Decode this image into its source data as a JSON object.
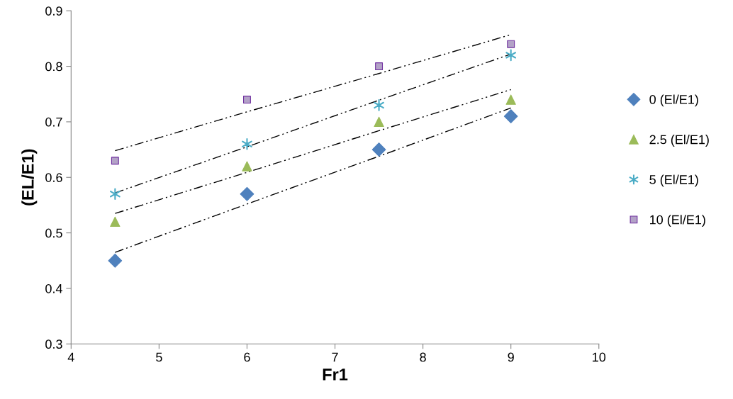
{
  "chart_data": {
    "type": "scatter",
    "xlabel": "Fr1",
    "ylabel": "(EL/E1)",
    "xlim": [
      4,
      10
    ],
    "xticks": [
      4,
      5,
      6,
      7,
      8,
      9,
      10
    ],
    "ylim": [
      0.3,
      0.9
    ],
    "yticks": [
      0.3,
      0.4,
      0.5,
      0.6,
      0.7,
      0.8,
      0.9
    ],
    "grid": false,
    "legend": "right",
    "x": [
      4.5,
      6,
      7.5,
      9
    ],
    "series": [
      {
        "name": "0 (El/E1)",
        "color": "#4f81bd",
        "marker": "diamond",
        "values": [
          0.45,
          0.57,
          0.65,
          0.71
        ]
      },
      {
        "name": "2.5 (El/E1)",
        "color": "#9bbb59",
        "marker": "triangle",
        "values": [
          0.52,
          0.62,
          0.7,
          0.74
        ]
      },
      {
        "name": "5 (El/E1)",
        "color": "#4bacc6",
        "marker": "cross",
        "values": [
          0.57,
          0.66,
          0.73,
          0.82
        ]
      },
      {
        "name": "10 (El/E1)",
        "color": "#b3a2c7",
        "marker": "square",
        "values": [
          0.63,
          0.74,
          0.8,
          0.84
        ]
      },
      {
        "type": "line",
        "color": "#000000",
        "line_style": "dashdotdot",
        "marker": "none",
        "values": [
          0.465,
          0.552,
          0.638,
          0.725
        ]
      },
      {
        "type": "line",
        "color": "#000000",
        "line_style": "dashdotdot",
        "marker": "none",
        "values": [
          0.535,
          0.609,
          0.684,
          0.758
        ]
      },
      {
        "type": "line",
        "color": "#000000",
        "line_style": "dashdotdot",
        "marker": "none",
        "values": [
          0.572,
          0.655,
          0.739,
          0.822
        ]
      },
      {
        "type": "line",
        "color": "#000000",
        "line_style": "dashdotdot",
        "marker": "none",
        "values": [
          0.648,
          0.718,
          0.787,
          0.857
        ]
      }
    ]
  }
}
